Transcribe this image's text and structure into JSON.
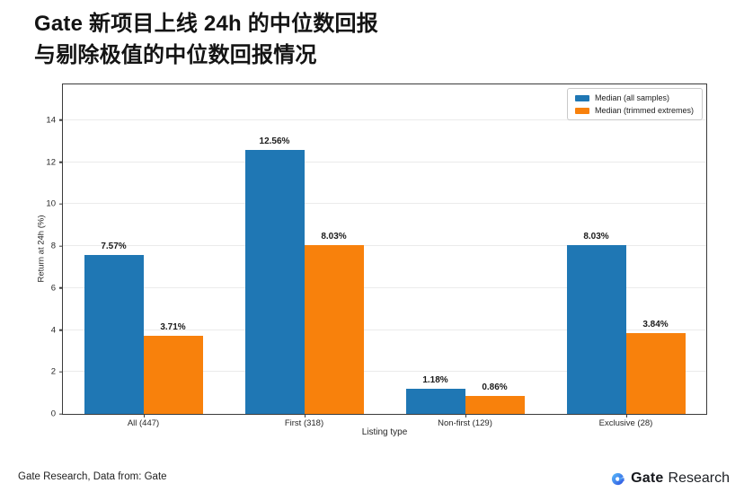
{
  "page": {
    "title_line1": "Gate 新项目上线 24h 的中位数回报",
    "title_line2": "与剔除极值的中位数回报情况",
    "source_note": "Gate Research, Data from: Gate",
    "brand": {
      "icon": "gate-g-logo",
      "icon_color_start": "#5cc0fa",
      "icon_color_end": "#2b4fe0",
      "name_bold": "Gate",
      "name_regular": "Research"
    }
  },
  "chart_data": {
    "type": "bar",
    "title": "Gate 新项目上线 24h 的中位数回报与剔除极值的中位数回报情况",
    "categories": [
      "All (447)",
      "First (318)",
      "Non-first (129)",
      "Exclusive (28)"
    ],
    "series": [
      {
        "name": "Median (all samples)",
        "color": "#1f77b4",
        "values": [
          7.57,
          12.56,
          1.18,
          8.03
        ],
        "labels": [
          "7.57%",
          "12.56%",
          "1.18%",
          "8.03%"
        ]
      },
      {
        "name": "Median (trimmed extremes)",
        "color": "#f8810c",
        "values": [
          3.71,
          8.03,
          0.86,
          3.84
        ],
        "labels": [
          "3.71%",
          "8.03%",
          "0.86%",
          "3.84%"
        ]
      }
    ],
    "xlabel": "Listing type",
    "ylabel": "Return at 24h (%)",
    "ylim": [
      0,
      15.7
    ],
    "yticks": [
      0,
      2,
      4,
      6,
      8,
      10,
      12,
      14
    ],
    "grid": true,
    "legend_position": "upper right"
  }
}
